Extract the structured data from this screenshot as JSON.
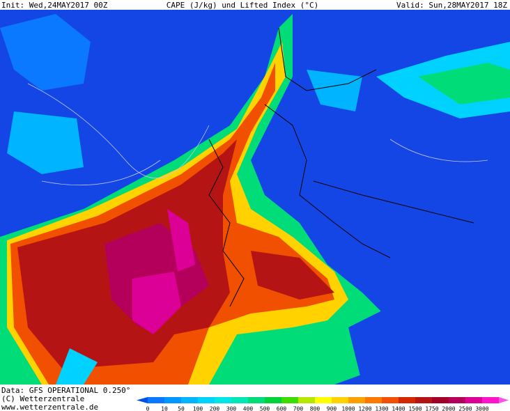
{
  "header": {
    "init": "Init: Wed,24MAY2017 00Z",
    "title": "CAPE (J/kg) und Lifted Index (°C)",
    "valid": "Valid: Sun,28MAY2017 18Z"
  },
  "footer": {
    "data": "Data: GFS OPERATIONAL 0.250°",
    "copyright": "(C) Wetterzentrale",
    "url": "www.wetterzentrale.de"
  },
  "legend": {
    "levels": [
      0,
      10,
      50,
      100,
      200,
      300,
      400,
      500,
      600,
      700,
      800,
      900,
      1000,
      1200,
      1300,
      1400,
      1500,
      1750,
      2000,
      2500,
      3000
    ],
    "colors": [
      "#0a78ff",
      "#0096ff",
      "#00b4ff",
      "#00d2ff",
      "#00e6e6",
      "#00e6b4",
      "#00dc78",
      "#00d23c",
      "#3cdc00",
      "#b4e600",
      "#ffff00",
      "#ffd200",
      "#ffa000",
      "#ff7800",
      "#f05000",
      "#d22800",
      "#b41414",
      "#a00028",
      "#b4005a",
      "#dc0096",
      "#ff14c8"
    ],
    "low_color": "#0050f0",
    "high_color": "#ff50e6"
  }
}
